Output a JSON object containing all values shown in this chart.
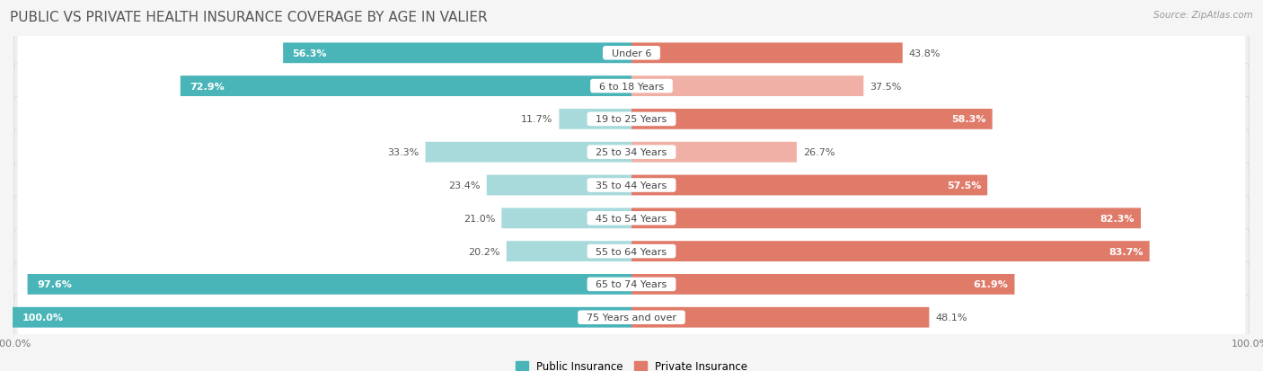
{
  "title": "PUBLIC VS PRIVATE HEALTH INSURANCE COVERAGE BY AGE IN VALIER",
  "source": "Source: ZipAtlas.com",
  "categories": [
    "Under 6",
    "6 to 18 Years",
    "19 to 25 Years",
    "25 to 34 Years",
    "35 to 44 Years",
    "45 to 54 Years",
    "55 to 64 Years",
    "65 to 74 Years",
    "75 Years and over"
  ],
  "public_values": [
    56.3,
    72.9,
    11.7,
    33.3,
    23.4,
    21.0,
    20.2,
    97.6,
    100.0
  ],
  "private_values": [
    43.8,
    37.5,
    58.3,
    26.7,
    57.5,
    82.3,
    83.7,
    61.9,
    48.1
  ],
  "public_color_dark": "#4ab5b8",
  "public_color_light": "#a8dadb",
  "private_color_dark": "#e07b6a",
  "private_color_light": "#f0b0a5",
  "row_bg_color": "#efefef",
  "row_border_color": "#d8d8d8",
  "bg_color": "#f5f5f5",
  "title_color": "#555555",
  "source_color": "#999999",
  "label_dark_color": "#ffffff",
  "label_outside_color": "#555555",
  "max_value": 100.0,
  "legend_labels": [
    "Public Insurance",
    "Private Insurance"
  ],
  "title_fontsize": 11,
  "bar_label_fontsize": 8,
  "cat_label_fontsize": 8,
  "axis_tick_fontsize": 8
}
